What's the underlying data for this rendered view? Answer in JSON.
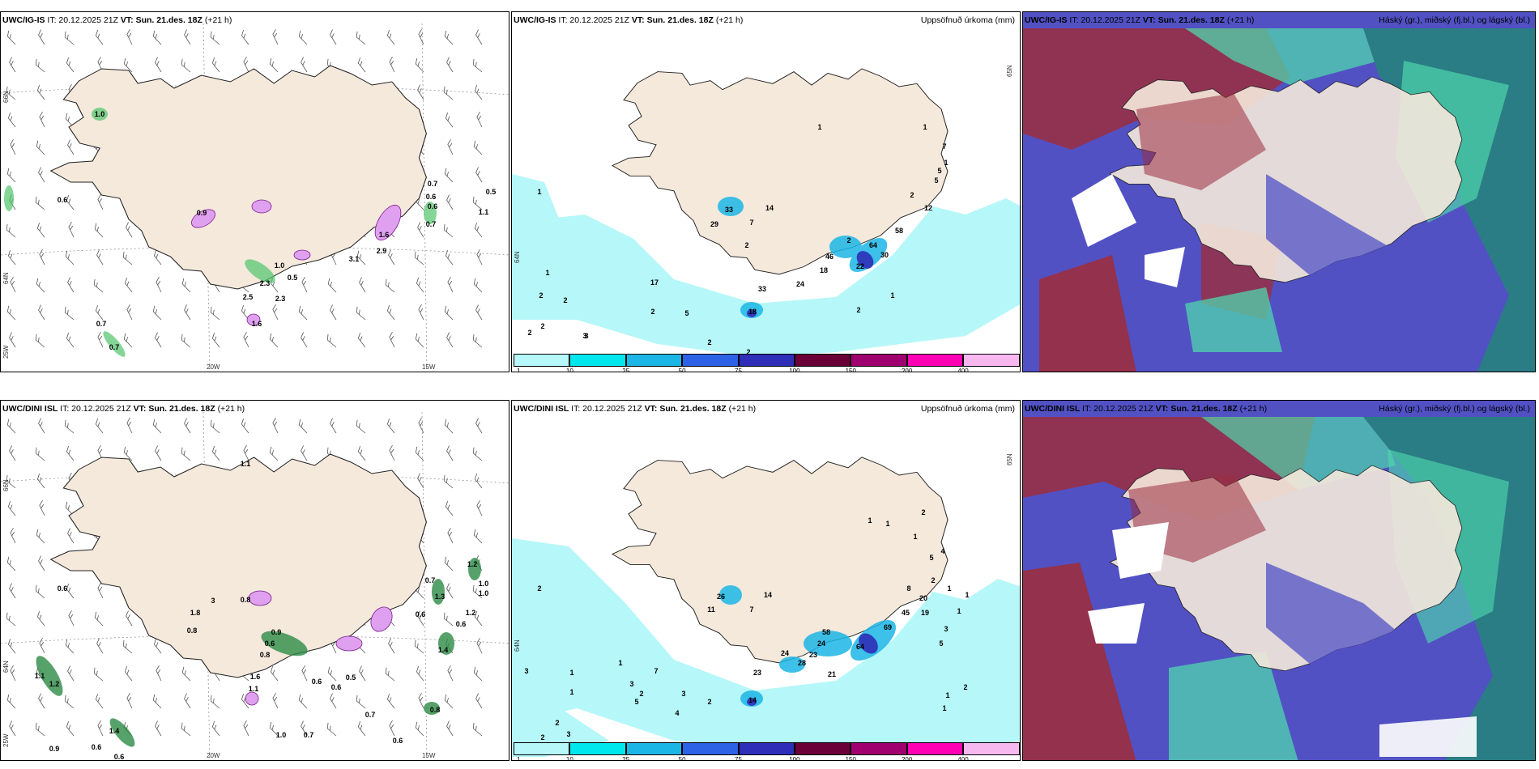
{
  "colors": {
    "land": "#f5e9dc",
    "sea": "#ffffff",
    "precip": [
      "#b6f7f9",
      "#00e8ee",
      "#1cb6e6",
      "#2e62e6",
      "#2e2eb8",
      "#6b0039",
      "#a0006f",
      "#ff00b4",
      "#f7b8ef"
    ],
    "cloud_high": "#4fd6ad",
    "cloud_mid": "#9b2e3f",
    "cloud_low": "#5151c4",
    "cloud_dark_teal": "#2a7d84"
  },
  "rows": [
    {
      "wind_panel": {
        "model": "UWC/IG-IS",
        "init": "IT: 20.12.2025 21Z",
        "valid_label": "VT:",
        "valid": "Sun. 21.des. 18Z",
        "lead": "(+21 h)",
        "lat_labels": [
          "66N",
          "64N",
          "25W"
        ],
        "lon_labels": [
          "20W",
          "15W"
        ],
        "values": [
          "1.0",
          "0.6",
          "0.9",
          "1.0",
          "0.5",
          "2.3",
          "2.5",
          "2.3",
          "0.7",
          "0.7",
          "0.7",
          "0.6",
          "0.6",
          "0.7",
          "0.5",
          "1.1",
          "1.6",
          "3.1",
          "2.9",
          "1.6"
        ]
      },
      "precip_panel": {
        "model": "UWC/IG-IS",
        "init": "IT: 20.12.2025 21Z",
        "valid_label": "VT:",
        "valid": "Sun. 21.des. 18Z",
        "lead": "(+21 h)",
        "title_right": "Uppsöfnuð úrkoma (mm)",
        "lat_labels": [
          "65N",
          "64N"
        ],
        "values": [
          "1",
          "1",
          "33",
          "14",
          "29",
          "7",
          "2",
          "17",
          "1",
          "2",
          "2",
          "2",
          "2",
          "3",
          "2",
          "5",
          "2",
          "2",
          "18",
          "33",
          "24",
          "46",
          "18",
          "22",
          "64",
          "58",
          "30",
          "12",
          "2",
          "5",
          "1",
          "1",
          "1",
          "2",
          "7",
          "5",
          "2",
          "3"
        ],
        "legend_ticks": [
          "1",
          "10",
          "25",
          "50",
          "75",
          "100",
          "150",
          "200",
          "400"
        ]
      },
      "cloud_panel": {
        "model": "UWC/IG-IS",
        "init": "IT: 20.12.2025 21Z",
        "valid_label": "VT:",
        "valid": "Sun. 21.des. 18Z",
        "lead": "(+21 h)",
        "title_right": "Háský (gr.), miðský (fj.bl.) og lágský (bl.)"
      }
    },
    {
      "wind_panel": {
        "model": "UWC/DINI ISL",
        "init": "IT: 20.12.2025 21Z",
        "valid_label": "VT:",
        "valid": "Sun. 21.des. 18Z",
        "lead": "(+21 h)",
        "lat_labels": [
          "66N",
          "64N",
          "25W"
        ],
        "lon_labels": [
          "20W",
          "15W"
        ],
        "values": [
          "1.1",
          "0.6",
          "1.8",
          "0.8",
          "0.9",
          "0.6",
          "0.8",
          "0.6",
          "0.5",
          "0.6",
          "1.1",
          "1.2",
          "0.9",
          "0.6",
          "1.4",
          "0.6",
          "1.6",
          "1.1",
          "1.0",
          "0.7",
          "0.7",
          "0.6",
          "0.8",
          "0.7",
          "1.2",
          "1.0",
          "1.0",
          "1.2",
          "1.3",
          "3",
          "0.6",
          "0.8",
          "0.6",
          "1.4"
        ]
      },
      "precip_panel": {
        "model": "UWC/DINI ISL",
        "init": "IT: 20.12.2025 21Z",
        "valid_label": "VT:",
        "valid": "Sun. 21.des. 18Z",
        "lead": "(+21 h)",
        "title_right": "Uppsöfnuð úrkoma (mm)",
        "lat_labels": [
          "65N",
          "64N"
        ],
        "values": [
          "1",
          "2",
          "26",
          "14",
          "11",
          "7",
          "7",
          "1",
          "3",
          "1",
          "1",
          "2",
          "3",
          "2",
          "3",
          "2",
          "3",
          "2",
          "4",
          "5",
          "14",
          "23",
          "24",
          "28",
          "24",
          "58",
          "23",
          "21",
          "64",
          "69",
          "45",
          "20",
          "19",
          "8",
          "5",
          "1",
          "1",
          "2",
          "2",
          "4",
          "3",
          "5",
          "1",
          "1",
          "1",
          "1",
          "2",
          "1"
        ],
        "legend_ticks": [
          "1",
          "10",
          "25",
          "50",
          "75",
          "100",
          "150",
          "200",
          "400"
        ]
      },
      "cloud_panel": {
        "model": "UWC/DINI ISL",
        "init": "IT: 20.12.2025 21Z",
        "valid_label": "VT:",
        "valid": "Sun. 21.des. 18Z",
        "lead": "(+21 h)",
        "title_right": "Háský (gr.), miðský (fj.bl.) og lágský (bl.)"
      }
    }
  ]
}
